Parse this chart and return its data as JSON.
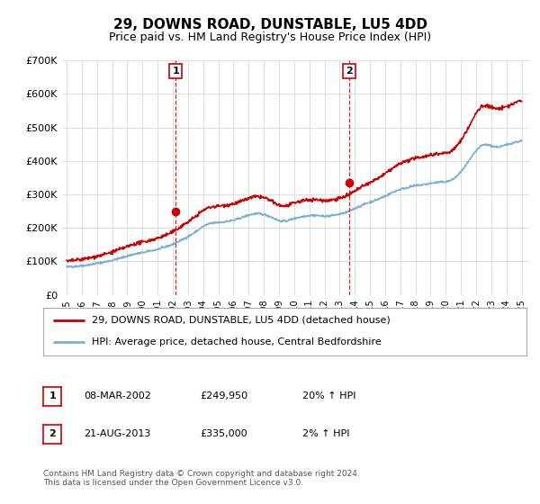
{
  "title": "29, DOWNS ROAD, DUNSTABLE, LU5 4DD",
  "subtitle": "Price paid vs. HM Land Registry's House Price Index (HPI)",
  "ylim": [
    0,
    700000
  ],
  "yticks": [
    0,
    100000,
    200000,
    300000,
    400000,
    500000,
    600000,
    700000
  ],
  "ytick_labels": [
    "£0",
    "£100K",
    "£200K",
    "£300K",
    "£400K",
    "£500K",
    "£600K",
    "£700K"
  ],
  "xlim_start": 1994.7,
  "xlim_end": 2025.5,
  "background_color": "#ffffff",
  "grid_color": "#dddddd",
  "sale1_x": 2002.19,
  "sale1_y": 249950,
  "sale2_x": 2013.64,
  "sale2_y": 335000,
  "legend_line1": "29, DOWNS ROAD, DUNSTABLE, LU5 4DD (detached house)",
  "legend_line2": "HPI: Average price, detached house, Central Bedfordshire",
  "table_row1": [
    "1",
    "08-MAR-2002",
    "£249,950",
    "20% ↑ HPI"
  ],
  "table_row2": [
    "2",
    "21-AUG-2013",
    "£335,000",
    "2% ↑ HPI"
  ],
  "footer": "Contains HM Land Registry data © Crown copyright and database right 2024.\nThis data is licensed under the Open Government Licence v3.0.",
  "red_color": "#cc0000",
  "blue_color": "#7bafd4",
  "title_fontsize": 11,
  "subtitle_fontsize": 9,
  "hpi_data": {
    "years": [
      1995.0,
      1995.5,
      1996.0,
      1996.5,
      1997.0,
      1997.5,
      1998.0,
      1998.5,
      1999.0,
      1999.5,
      2000.0,
      2000.5,
      2001.0,
      2001.5,
      2002.0,
      2002.5,
      2003.0,
      2003.5,
      2004.0,
      2004.5,
      2005.0,
      2005.5,
      2006.0,
      2006.5,
      2007.0,
      2007.5,
      2008.0,
      2008.5,
      2009.0,
      2009.5,
      2010.0,
      2010.5,
      2011.0,
      2011.5,
      2012.0,
      2012.5,
      2013.0,
      2013.5,
      2014.0,
      2014.5,
      2015.0,
      2015.5,
      2016.0,
      2016.5,
      2017.0,
      2017.5,
      2018.0,
      2018.5,
      2019.0,
      2019.5,
      2020.0,
      2020.5,
      2021.0,
      2021.5,
      2022.0,
      2022.5,
      2023.0,
      2023.5,
      2024.0,
      2024.5,
      2025.0
    ],
    "hpi_values": [
      83000,
      85000,
      87000,
      90000,
      94000,
      98000,
      103000,
      109000,
      116000,
      122000,
      126000,
      131000,
      136000,
      143000,
      151000,
      162000,
      174000,
      188000,
      204000,
      213000,
      216000,
      219000,
      223000,
      230000,
      238000,
      242000,
      240000,
      232000,
      222000,
      221000,
      228000,
      233000,
      237000,
      237000,
      235000,
      237000,
      241000,
      247000,
      258000,
      268000,
      277000,
      285000,
      295000,
      306000,
      315000,
      321000,
      326000,
      329000,
      333000,
      336000,
      338000,
      346000,
      368000,
      398000,
      430000,
      448000,
      445000,
      442000,
      448000,
      455000,
      460000
    ],
    "price_paid_values": [
      100000,
      103000,
      106000,
      110000,
      115000,
      121000,
      128000,
      136000,
      144000,
      152000,
      157000,
      163000,
      169000,
      178000,
      188000,
      203000,
      218000,
      234000,
      252000,
      262000,
      265000,
      268000,
      272000,
      279000,
      288000,
      293000,
      290000,
      280000,
      268000,
      266000,
      274000,
      280000,
      284000,
      284000,
      282000,
      284000,
      289000,
      296000,
      310000,
      323000,
      335000,
      347000,
      362000,
      378000,
      392000,
      401000,
      408000,
      413000,
      418000,
      422000,
      424000,
      434000,
      462000,
      500000,
      542000,
      565000,
      560000,
      556000,
      562000,
      572000,
      580000
    ]
  }
}
